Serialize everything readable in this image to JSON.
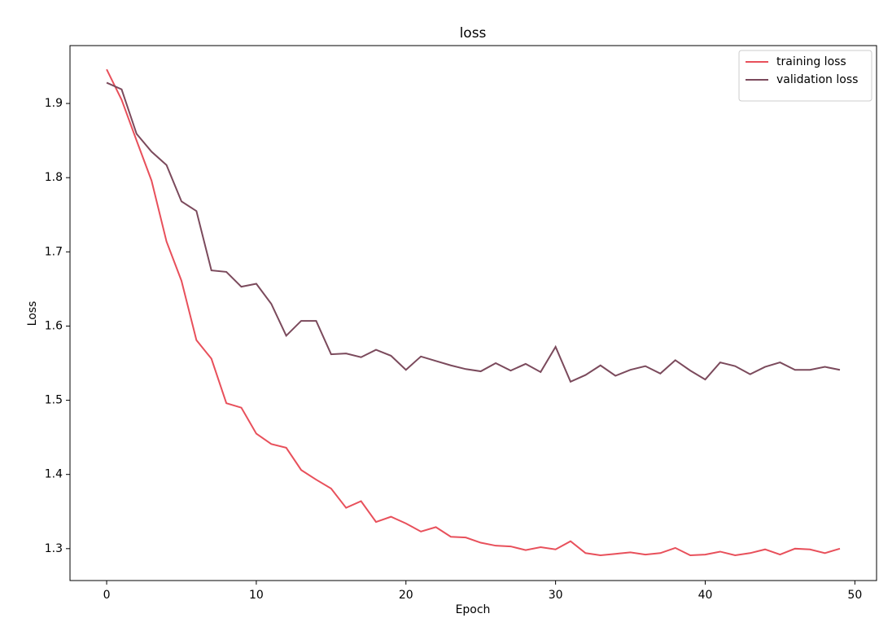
{
  "chart_data": {
    "type": "line",
    "title": "loss",
    "x_label": "Epoch",
    "y_label": "Loss",
    "x": [
      0,
      1,
      2,
      3,
      4,
      5,
      6,
      7,
      8,
      9,
      10,
      11,
      12,
      13,
      14,
      15,
      16,
      17,
      18,
      19,
      20,
      21,
      22,
      23,
      24,
      25,
      26,
      27,
      28,
      29,
      30,
      31,
      32,
      33,
      34,
      35,
      36,
      37,
      38,
      39,
      40,
      41,
      42,
      43,
      44,
      45,
      46,
      47,
      48,
      49
    ],
    "series": [
      {
        "name": "training loss",
        "color": "#e8505b",
        "values": [
          1.946,
          1.905,
          1.85,
          1.796,
          1.714,
          1.661,
          1.581,
          1.556,
          1.496,
          1.49,
          1.455,
          1.441,
          1.436,
          1.406,
          1.393,
          1.381,
          1.355,
          1.364,
          1.336,
          1.343,
          1.334,
          1.323,
          1.329,
          1.316,
          1.315,
          1.308,
          1.304,
          1.303,
          1.298,
          1.302,
          1.299,
          1.31,
          1.294,
          1.291,
          1.293,
          1.295,
          1.292,
          1.294,
          1.301,
          1.291,
          1.292,
          1.296,
          1.291,
          1.294,
          1.299,
          1.292,
          1.3,
          1.299,
          1.294,
          1.3
        ]
      },
      {
        "name": "validation loss",
        "color": "#7b4a5c",
        "values": [
          1.928,
          1.919,
          1.859,
          1.835,
          1.817,
          1.768,
          1.755,
          1.675,
          1.673,
          1.653,
          1.657,
          1.63,
          1.587,
          1.607,
          1.607,
          1.562,
          1.563,
          1.558,
          1.568,
          1.56,
          1.541,
          1.559,
          1.553,
          1.547,
          1.542,
          1.539,
          1.55,
          1.54,
          1.549,
          1.538,
          1.572,
          1.525,
          1.534,
          1.547,
          1.533,
          1.541,
          1.546,
          1.536,
          1.554,
          1.54,
          1.528,
          1.551,
          1.546,
          1.535,
          1.545,
          1.551,
          1.541,
          1.541,
          1.545,
          1.541
        ]
      }
    ],
    "xlim": [
      -2.45,
      51.45
    ],
    "xticks": [
      0,
      10,
      20,
      30,
      40,
      50
    ],
    "ylim": [
      1.257,
      1.978
    ],
    "yticks": [
      1.3,
      1.4,
      1.5,
      1.6,
      1.7,
      1.8,
      1.9
    ],
    "legend": "upper right"
  }
}
